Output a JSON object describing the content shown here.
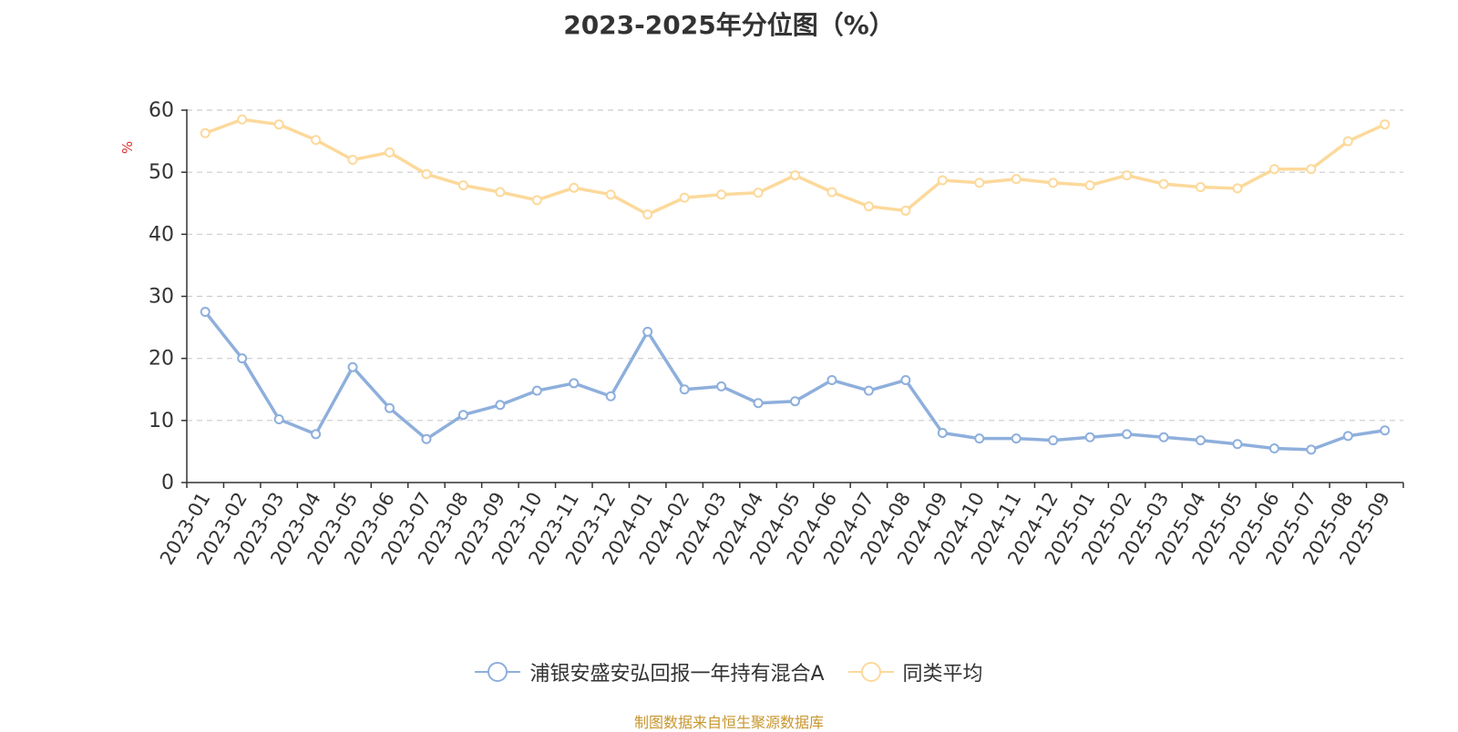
{
  "chart_data": {
    "type": "line",
    "title": "2023-2025年分位图（%）",
    "ylabel": "%",
    "xlabel": "",
    "ylim": [
      0,
      60
    ],
    "yticks": [
      "0",
      "10",
      "20",
      "30",
      "40",
      "50",
      "60"
    ],
    "grid": true,
    "legend_position": "bottom",
    "categories": [
      "2023-01",
      "2023-02",
      "2023-03",
      "2023-04",
      "2023-05",
      "2023-06",
      "2023-07",
      "2023-08",
      "2023-09",
      "2023-10",
      "2023-11",
      "2023-12",
      "2024-01",
      "2024-02",
      "2024-03",
      "2024-04",
      "2024-05",
      "2024-06",
      "2024-07",
      "2024-08",
      "2024-09",
      "2024-10",
      "2024-11",
      "2024-12",
      "2025-01",
      "2025-02",
      "2025-03",
      "2025-04",
      "2025-05",
      "2025-06",
      "2025-07",
      "2025-08",
      "2025-09"
    ],
    "series": [
      {
        "name": "浦银安盛安弘回报一年持有混合A",
        "color": "#8eafdc",
        "values": [
          27.5,
          20.0,
          10.2,
          7.8,
          18.6,
          12.0,
          7.0,
          10.9,
          12.5,
          14.8,
          16.0,
          13.9,
          24.3,
          15.0,
          15.5,
          12.8,
          13.1,
          16.5,
          14.8,
          16.5,
          8.0,
          7.1,
          7.1,
          6.8,
          7.3,
          7.8,
          7.3,
          6.8,
          6.2,
          5.5,
          5.3,
          7.5,
          8.4
        ]
      },
      {
        "name": "同类平均",
        "color": "#fcd99b",
        "values": [
          56.3,
          58.5,
          57.7,
          55.2,
          52.0,
          53.2,
          49.7,
          47.9,
          46.8,
          45.5,
          47.5,
          46.4,
          43.2,
          45.9,
          46.4,
          46.7,
          49.5,
          46.8,
          44.5,
          43.8,
          48.7,
          48.3,
          48.9,
          48.3,
          47.9,
          49.5,
          48.1,
          47.6,
          47.4,
          50.5,
          50.5,
          55.0,
          57.7
        ]
      }
    ]
  },
  "footer": {
    "source": "制图数据来自恒生聚源数据库"
  }
}
